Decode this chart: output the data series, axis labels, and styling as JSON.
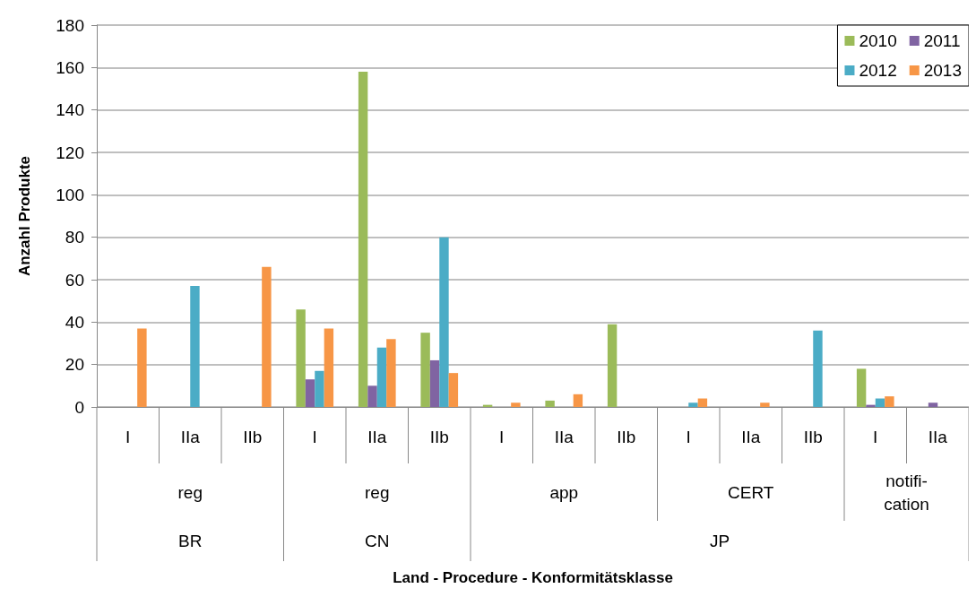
{
  "chart_data": {
    "type": "bar",
    "ylabel": "Anzahl Produkte",
    "categories": [
      "I",
      "IIa",
      "IIb",
      "I",
      "IIa",
      "IIb",
      "I",
      "IIa",
      "IIb",
      "I",
      "IIa",
      "IIb",
      "I",
      "IIa"
    ],
    "series": [
      {
        "name": "2010",
        "color": "#9bbb59",
        "values": [
          null,
          null,
          null,
          46,
          158,
          35,
          1,
          3,
          39,
          null,
          null,
          null,
          18,
          null
        ]
      },
      {
        "name": "2011",
        "color": "#8064a2",
        "values": [
          null,
          null,
          null,
          13,
          10,
          22,
          null,
          null,
          null,
          null,
          null,
          null,
          1,
          2
        ]
      },
      {
        "name": "2012",
        "color": "#4bacc6",
        "values": [
          null,
          57,
          null,
          17,
          28,
          80,
          null,
          null,
          null,
          2,
          null,
          36,
          4,
          null
        ]
      },
      {
        "name": "2013",
        "color": "#f79646",
        "values": [
          37,
          null,
          66,
          37,
          32,
          16,
          2,
          6,
          null,
          4,
          2,
          null,
          5,
          null
        ]
      }
    ],
    "annotations": [
      "reg",
      "reg",
      "app",
      "CERT",
      "notifi-\ncation",
      "BR",
      "CN",
      "JP",
      "Land - Procedure - Konformitätsklasse"
    ],
    "ylim": [
      0,
      180
    ],
    "yticks": [
      0,
      20,
      40,
      60,
      80,
      100,
      120,
      140,
      160,
      180
    ],
    "grid": "y",
    "legend": "top right"
  }
}
